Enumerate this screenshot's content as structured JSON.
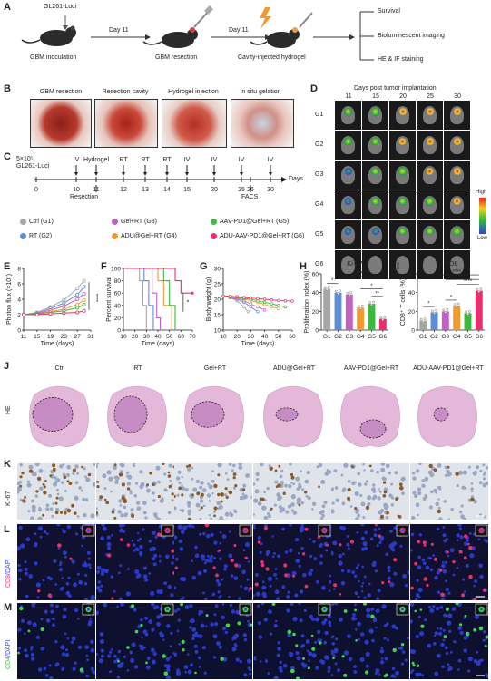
{
  "panel_labels": {
    "A": "A",
    "B": "B",
    "C": "C",
    "D": "D",
    "E": "E",
    "F": "F",
    "G": "G",
    "H": "H",
    "I": "I",
    "J": "J",
    "K": "K",
    "L": "L",
    "M": "M"
  },
  "panelA": {
    "cell_label": "GL261-Luci",
    "day1": "Day 11",
    "day2": "Day 11",
    "step1": "GBM inoculation",
    "step2": "GBM resection",
    "step3": "Cavity-injected hydrogel",
    "outcomes": [
      "Survival",
      "Bioluminescent imaging",
      "HE & IF staining"
    ]
  },
  "panelB": {
    "titles": [
      "GBM resection",
      "Resection cavity",
      "Hydrogel injection",
      "In situ gelation"
    ]
  },
  "panelC": {
    "cells_line1": "5×10⁵",
    "cells_line2": "GL261-Luci",
    "top_events": [
      "IV",
      "Hydrogel",
      "RT",
      "RT",
      "RT",
      "IV",
      "IV",
      "IV",
      "IV"
    ],
    "ticks": [
      "0",
      "10",
      "11",
      "12",
      "13",
      "14",
      "15",
      "20",
      "25",
      "26",
      "30"
    ],
    "days_label": "Days",
    "resection": "Resection",
    "facs": "FACS",
    "legend": [
      {
        "label": "Ctrl (G1)",
        "color": "#a6a6a6"
      },
      {
        "label": "Gel+RT (G3)",
        "color": "#c45fc4"
      },
      {
        "label": "AAV-PD1@Gel+RT (G5)",
        "color": "#3cb83c"
      },
      {
        "label": "RT (G2)",
        "color": "#5b8fd8"
      },
      {
        "label": "ADU@Gel+RT (G4)",
        "color": "#f29a2e"
      },
      {
        "label": "ADU-AAV-PD1@Gel+RT (G6)",
        "color": "#e8306c"
      }
    ]
  },
  "panelD": {
    "title": "Days post tumor implantation",
    "days": [
      "11",
      "15",
      "20",
      "25",
      "30"
    ],
    "groups": [
      "G1",
      "G2",
      "G3",
      "G4",
      "G5",
      "G6"
    ],
    "scale_high": "High",
    "scale_low": "Low"
  },
  "panelE": {
    "ylabel": "Photon flux (×10⁷)",
    "xlabel": "Time (days)",
    "yticks": [
      "0",
      "2",
      "4",
      "6",
      "8"
    ],
    "xticks": [
      "11",
      "15",
      "19",
      "23",
      "27",
      "31"
    ],
    "sig": "****"
  },
  "panelF": {
    "ylabel": "Percent survival",
    "xlabel": "Time (days)",
    "yticks": [
      "0",
      "20",
      "40",
      "60",
      "80",
      "100"
    ],
    "xticks": [
      "10",
      "20",
      "30",
      "40",
      "50",
      "60",
      "70"
    ],
    "sig": "*"
  },
  "panelG": {
    "ylabel": "Body weight (g)",
    "xlabel": "Time (days)",
    "yticks": [
      "10",
      "15",
      "20",
      "25",
      "30"
    ],
    "xticks": [
      "10",
      "20",
      "30",
      "40",
      "50",
      "60"
    ]
  },
  "panelH": {
    "title": "Ki-67",
    "ylabel": "Proliferation index (%)",
    "yticks": [
      "0",
      "20",
      "40",
      "60"
    ],
    "groups": [
      "G1",
      "G2",
      "G3",
      "G4",
      "G5",
      "G6"
    ],
    "sigs": [
      "*",
      "****",
      "*",
      "**"
    ]
  },
  "panelI": {
    "title": "CD8",
    "ylabel": "CD8⁺ T cells (%)",
    "yticks": [
      "0",
      "20",
      "40",
      "60"
    ],
    "groups": [
      "G1",
      "G2",
      "G3",
      "G4",
      "G5",
      "G6"
    ],
    "sigs": [
      "****",
      "**",
      "****",
      "*",
      "*"
    ]
  },
  "panelJ": {
    "row_label": "HE",
    "groups": [
      "Ctrl",
      "RT",
      "Gel+RT",
      "ADU@Gel+RT",
      "AAV-PD1@Gel+RT",
      "ADU-AAV-PD1@Gel+RT"
    ]
  },
  "panelK": {
    "row_label": "Ki-67"
  },
  "panelL": {
    "row_label_a": "CD8",
    "row_label_b": "/DAPI"
  },
  "panelM": {
    "row_label_a": "CD4",
    "row_label_b": "/DAPI"
  },
  "chart_data": [
    {
      "type": "line",
      "title": "",
      "xlabel": "Time (days)",
      "ylabel": "Photon flux (×10⁷)",
      "xlim": [
        11,
        31
      ],
      "ylim": [
        0,
        8
      ],
      "x": [
        11,
        15,
        19,
        23,
        27,
        29
      ],
      "series": [
        {
          "name": "G1",
          "color": "#a6a6a6",
          "values": [
            2.0,
            2.3,
            3.0,
            3.9,
            5.4,
            6.4
          ]
        },
        {
          "name": "G2",
          "color": "#5b8fd8",
          "values": [
            2.0,
            2.2,
            2.8,
            3.5,
            4.6,
            5.6
          ]
        },
        {
          "name": "G3",
          "color": "#c45fc4",
          "values": [
            2.0,
            2.1,
            2.6,
            3.1,
            4.0,
            4.7
          ]
        },
        {
          "name": "G4",
          "color": "#f29a2e",
          "values": [
            2.0,
            2.1,
            2.4,
            2.7,
            3.3,
            3.9
          ]
        },
        {
          "name": "G5",
          "color": "#3cb83c",
          "values": [
            2.0,
            2.1,
            2.3,
            2.5,
            2.9,
            3.3
          ]
        },
        {
          "name": "G6",
          "color": "#e8306c",
          "values": [
            2.0,
            2.0,
            2.1,
            2.2,
            2.3,
            2.5
          ]
        }
      ]
    },
    {
      "type": "line",
      "title": "",
      "xlabel": "Time (days)",
      "ylabel": "Percent survival",
      "xlim": [
        10,
        70
      ],
      "ylim": [
        0,
        100
      ],
      "series": [
        {
          "name": "G1",
          "color": "#a6a6a6",
          "x": [
            10,
            24,
            24,
            27,
            27,
            30,
            30
          ],
          "values": [
            100,
            100,
            80,
            80,
            40,
            40,
            0
          ]
        },
        {
          "name": "G2",
          "color": "#5b8fd8",
          "x": [
            10,
            28,
            28,
            32,
            32,
            36,
            36
          ],
          "values": [
            100,
            100,
            80,
            80,
            40,
            40,
            0
          ]
        },
        {
          "name": "G3",
          "color": "#c45fc4",
          "x": [
            10,
            35,
            35,
            39,
            39,
            42,
            42
          ],
          "values": [
            100,
            100,
            60,
            60,
            20,
            20,
            0
          ]
        },
        {
          "name": "G4",
          "color": "#f29a2e",
          "x": [
            10,
            40,
            40,
            45,
            45,
            52,
            52
          ],
          "values": [
            100,
            100,
            80,
            80,
            40,
            40,
            0
          ]
        },
        {
          "name": "G5",
          "color": "#3cb83c",
          "x": [
            10,
            45,
            45,
            50,
            50,
            55,
            55
          ],
          "values": [
            100,
            100,
            80,
            80,
            40,
            40,
            0
          ]
        },
        {
          "name": "G6",
          "color": "#e8306c",
          "x": [
            10,
            55,
            55,
            60,
            60,
            70
          ],
          "values": [
            100,
            100,
            80,
            80,
            60,
            60
          ]
        }
      ]
    },
    {
      "type": "line",
      "title": "",
      "xlabel": "Time (days)",
      "ylabel": "Body weight (g)",
      "xlim": [
        10,
        60
      ],
      "ylim": [
        10,
        30
      ],
      "series": [
        {
          "name": "G1",
          "color": "#a6a6a6",
          "x": [
            10,
            15,
            20,
            25,
            28
          ],
          "values": [
            21,
            20.5,
            19.5,
            17.5,
            16
          ]
        },
        {
          "name": "G2",
          "color": "#5b8fd8",
          "x": [
            10,
            15,
            20,
            25,
            30,
            35
          ],
          "values": [
            21,
            20.5,
            20,
            19,
            17.5,
            16
          ]
        },
        {
          "name": "G3",
          "color": "#c45fc4",
          "x": [
            10,
            15,
            20,
            25,
            30,
            35,
            40
          ],
          "values": [
            21,
            20.7,
            20.3,
            19.5,
            18.5,
            17.5,
            16.5
          ]
        },
        {
          "name": "G4",
          "color": "#f29a2e",
          "x": [
            10,
            15,
            20,
            25,
            30,
            35,
            40,
            45,
            50
          ],
          "values": [
            21,
            20.8,
            20.5,
            20,
            19.5,
            19,
            18.3,
            17.5,
            17
          ]
        },
        {
          "name": "G5",
          "color": "#3cb83c",
          "x": [
            10,
            15,
            20,
            25,
            30,
            35,
            40,
            45,
            50,
            55
          ],
          "values": [
            21,
            20.8,
            20.6,
            20.3,
            20,
            19.5,
            19,
            18.5,
            18,
            17.5
          ]
        },
        {
          "name": "G6",
          "color": "#e8306c",
          "x": [
            10,
            15,
            20,
            25,
            30,
            35,
            40,
            45,
            50,
            55,
            60
          ],
          "values": [
            21,
            21,
            20.8,
            20.6,
            20.4,
            20.2,
            20,
            19.8,
            19.6,
            19.5,
            19.4
          ]
        }
      ]
    },
    {
      "type": "bar",
      "title": "Ki-67",
      "xlabel": "",
      "ylabel": "Proliferation index (%)",
      "ylim": [
        0,
        60
      ],
      "categories": [
        "G1",
        "G2",
        "G3",
        "G4",
        "G5",
        "G6"
      ],
      "colors": [
        "#a6a6a6",
        "#5b8fd8",
        "#c45fc4",
        "#f29a2e",
        "#3cb83c",
        "#e8306c"
      ],
      "values": [
        44,
        40,
        38,
        24,
        28,
        12
      ]
    },
    {
      "type": "bar",
      "title": "CD8",
      "xlabel": "",
      "ylabel": "CD8⁺ T cells (%)",
      "ylim": [
        0,
        60
      ],
      "categories": [
        "G1",
        "G2",
        "G3",
        "G4",
        "G5",
        "G6"
      ],
      "colors": [
        "#a6a6a6",
        "#5b8fd8",
        "#c45fc4",
        "#f29a2e",
        "#3cb83c",
        "#e8306c"
      ],
      "values": [
        10,
        19,
        20,
        26,
        18,
        42
      ]
    }
  ]
}
